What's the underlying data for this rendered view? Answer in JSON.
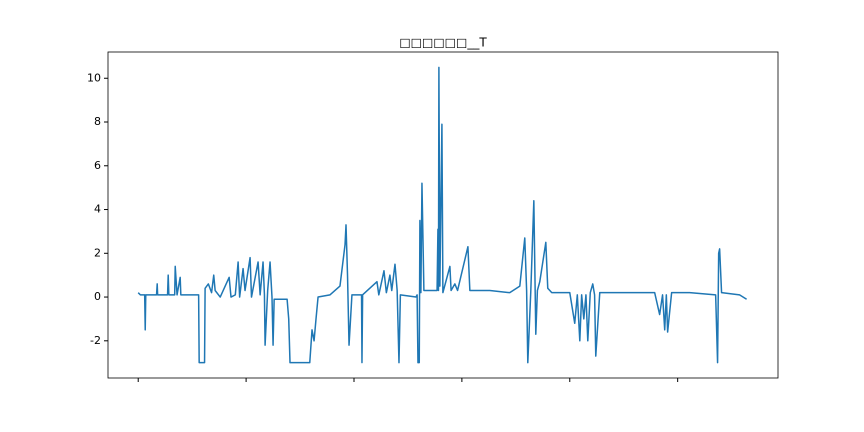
{
  "chart_data": {
    "type": "line",
    "title": "□□□□□□__T",
    "color": "#1f77b4",
    "xlim": [
      -280,
      5930
    ],
    "xticks": [
      0,
      1000,
      2000,
      3000,
      4000,
      5000
    ],
    "ylim": [
      -3.7,
      11.2
    ],
    "yticks": [
      -2,
      0,
      2,
      4,
      6,
      8,
      10
    ],
    "x": [
      0,
      20,
      60,
      65,
      70,
      170,
      176,
      180,
      272,
      278,
      284,
      338,
      343,
      360,
      389,
      395,
      560,
      565,
      615,
      620,
      650,
      680,
      700,
      713,
      760,
      843,
      860,
      900,
      926,
      940,
      972,
      990,
      1037,
      1050,
      1111,
      1130,
      1157,
      1170,
      1176,
      1200,
      1222,
      1240,
      1250,
      1260,
      1269,
      1380,
      1395,
      1407,
      1590,
      1611,
      1630,
      1648,
      1667,
      1778,
      1870,
      1917,
      1926,
      1940,
      1954,
      1981,
      2070,
      2074,
      2080,
      2213,
      2230,
      2278,
      2300,
      2333,
      2350,
      2380,
      2400,
      2417,
      2430,
      2574,
      2585,
      2593,
      2605,
      2611,
      2620,
      2630,
      2648,
      2770,
      2778,
      2783,
      2787,
      2796,
      2815,
      2824,
      2889,
      2900,
      2935,
      2960,
      3056,
      3074,
      3259,
      3444,
      3537,
      3583,
      3600,
      3611,
      3639,
      3667,
      3685,
      3700,
      3722,
      3778,
      3796,
      3833,
      3926,
      4000,
      4046,
      4070,
      4093,
      4110,
      4130,
      4150,
      4167,
      4190,
      4213,
      4230,
      4241,
      4278,
      4463,
      4648,
      4787,
      4833,
      4860,
      4880,
      4895,
      4907,
      4944,
      5111,
      5352,
      5370,
      5380,
      5389,
      5407,
      5574,
      5639
    ],
    "values": [
      0.2,
      0.1,
      0.1,
      -1.5,
      0.1,
      0.1,
      0.6,
      0.1,
      0.1,
      1.0,
      0.1,
      0.1,
      1.4,
      0.1,
      0.9,
      0.1,
      0.1,
      -3.0,
      -3.0,
      0.4,
      0.6,
      0.2,
      1.0,
      0.3,
      0,
      0.9,
      0,
      0.1,
      1.6,
      0,
      1.3,
      0.3,
      1.8,
      0,
      1.6,
      0.1,
      1.6,
      0.1,
      -2.2,
      0.3,
      1.6,
      0,
      -2.2,
      -0.1,
      -0.1,
      -0.1,
      -1.0,
      -3.0,
      -3.0,
      -1.5,
      -2.0,
      -1.0,
      0,
      0.1,
      0.5,
      2.4,
      3.3,
      1.0,
      -2.2,
      0.1,
      0.1,
      -3.0,
      0.1,
      0.7,
      0.1,
      1.2,
      0.2,
      1.0,
      0.3,
      1.5,
      0.3,
      -3.0,
      0.1,
      0,
      0.1,
      -3.0,
      -3.0,
      3.5,
      0.2,
      5.2,
      0.3,
      0.3,
      3.1,
      0.3,
      10.5,
      0.5,
      7.9,
      0.2,
      1.4,
      0.3,
      0.6,
      0.3,
      2.3,
      0.3,
      0.3,
      0.2,
      0.5,
      2.7,
      0.3,
      -3.0,
      0.3,
      4.4,
      -1.7,
      0.3,
      0.7,
      2.5,
      0.4,
      0.2,
      0.2,
      0.2,
      -1.2,
      0.1,
      -2.0,
      0.1,
      -1.0,
      0.1,
      -2.0,
      0.2,
      0.6,
      0.1,
      -2.7,
      0.2,
      0.2,
      0.2,
      0.2,
      -0.8,
      0.1,
      -1.5,
      0.1,
      -1.6,
      0.2,
      0.2,
      0.1,
      -3.0,
      2.0,
      2.2,
      0.2,
      0.1,
      -0.1
    ]
  }
}
